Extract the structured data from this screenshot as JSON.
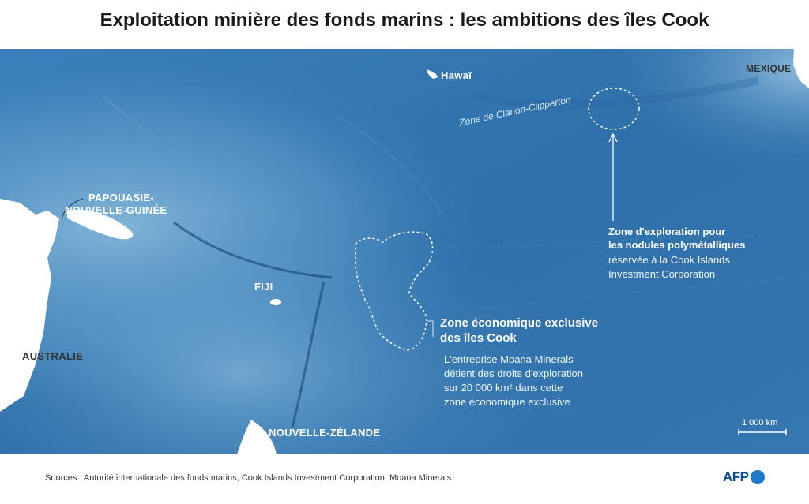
{
  "title": "Exploitation minière des fonds marins : les ambitions des îles Cook",
  "labels": {
    "hawaii": "Hawaï",
    "mexique": "MEXIQUE",
    "clarion": "Zone de Clarion-Clipperton",
    "png_line1": "PAPOUASIE-",
    "png_line2": "NOUVELLE-GUINÉE",
    "fiji": "FIJI",
    "australie": "AUSTRALIE",
    "nz": "NOUVELLE-ZÉLANDE"
  },
  "annotations": {
    "exploration": {
      "title_line1": "Zone d'exploration pour",
      "title_line2": "les nodules polymétalliques",
      "body_line1": "réservée à la Cook Islands",
      "body_line2": "Investment Corporation"
    },
    "eez": {
      "title_line1": "Zone économique exclusive",
      "title_line2": "des îles Cook",
      "body_line1": "L'entreprise Moana Minerals",
      "body_line2": "détient des droits d'exploration",
      "body_line3": "sur 20 000 km² dans cette",
      "body_line4": "zone économique exclusive"
    }
  },
  "scale": "1 000 km",
  "source": "Sources : Autorité internationale des fonds marins, Cook Islands Investment Corporation, Moana Minerals",
  "logo": "AFP",
  "colors": {
    "ocean_deep": "#2f6fa8",
    "ocean_mid": "#3f83bb",
    "ocean_shallow": "#7fb2d6",
    "land": "#ffffff",
    "logo_blue": "#0b4c8c"
  }
}
